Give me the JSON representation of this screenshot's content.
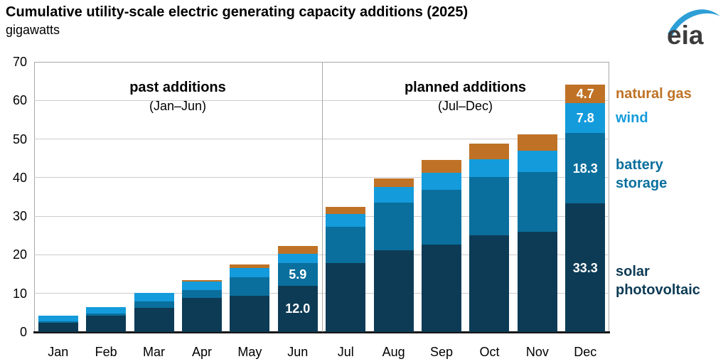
{
  "header": {
    "title": "Cumulative utility-scale electric generating capacity additions (2025)",
    "subtitle": "gigawatts"
  },
  "logo": {
    "text": "eia"
  },
  "annotations": {
    "past": {
      "title": "past additions",
      "subtitle": "(Jan–Jun)"
    },
    "planned": {
      "title": "planned additions",
      "subtitle": "(Jul–Dec)"
    }
  },
  "chart_data": {
    "type": "bar",
    "stacked": true,
    "cumulative_by_month": true,
    "title": "Cumulative utility-scale electric generating capacity additions (2025)",
    "ylabel": "gigawatts",
    "xlabel": "",
    "ylim": [
      0,
      70
    ],
    "yticks": [
      0,
      10,
      20,
      30,
      40,
      50,
      60,
      70
    ],
    "grid": true,
    "legend_position": "right",
    "divider_after_category": "Jun",
    "categories": [
      "Jan",
      "Feb",
      "Mar",
      "Apr",
      "May",
      "Jun",
      "Jul",
      "Aug",
      "Sep",
      "Oct",
      "Nov",
      "Dec"
    ],
    "series": [
      {
        "name": "solar photovoltaic",
        "color": "#0d3b55",
        "values_cumulative_gw": [
          2.4,
          4.3,
          6.2,
          8.8,
          9.4,
          12.0,
          17.8,
          21.1,
          22.6,
          25.0,
          26.0,
          33.3
        ]
      },
      {
        "name": "battery storage",
        "color": "#0a6f9d",
        "values_cumulative_gw": [
          0.3,
          0.4,
          1.8,
          2.1,
          4.8,
          5.9,
          9.5,
          12.4,
          14.2,
          15.2,
          15.4,
          18.3
        ]
      },
      {
        "name": "wind",
        "color": "#149bdb",
        "values_cumulative_gw": [
          1.6,
          1.7,
          2.1,
          2.1,
          2.3,
          2.4,
          3.2,
          4.1,
          4.4,
          4.5,
          5.6,
          7.8
        ]
      },
      {
        "name": "natural gas",
        "color": "#bf7226",
        "values_cumulative_gw": [
          0.0,
          0.0,
          0.0,
          0.4,
          1.0,
          1.9,
          2.0,
          2.1,
          3.3,
          4.2,
          4.3,
          4.7
        ]
      }
    ],
    "bar_labels": [
      {
        "category": "Jun",
        "series": "solar photovoltaic",
        "text": "12.0"
      },
      {
        "category": "Jun",
        "series": "battery storage",
        "text": "5.9"
      },
      {
        "category": "Dec",
        "series": "solar photovoltaic",
        "text": "33.3"
      },
      {
        "category": "Dec",
        "series": "battery storage",
        "text": "18.3"
      },
      {
        "category": "Dec",
        "series": "wind",
        "text": "7.8"
      },
      {
        "category": "Dec",
        "series": "natural gas",
        "text": "4.7"
      }
    ],
    "legend_items": [
      {
        "series": "natural gas",
        "lines": [
          "natural gas"
        ]
      },
      {
        "series": "wind",
        "lines": [
          "wind"
        ]
      },
      {
        "series": "battery storage",
        "lines": [
          "battery",
          "storage"
        ]
      },
      {
        "series": "solar photovoltaic",
        "lines": [
          "solar",
          "photovoltaic"
        ]
      }
    ]
  }
}
